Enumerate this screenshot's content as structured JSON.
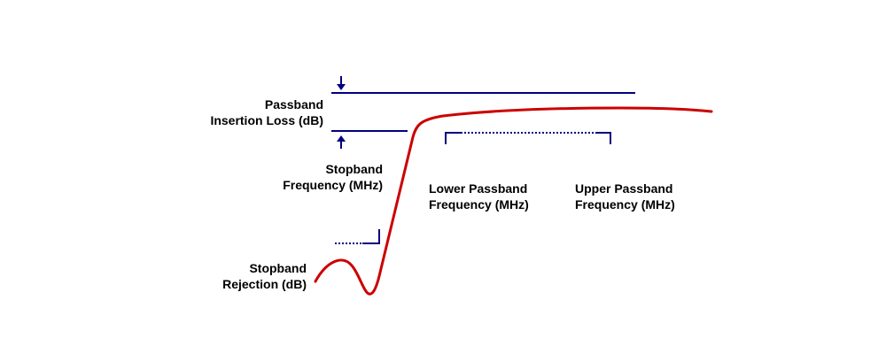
{
  "colors": {
    "response_curve": "#cc0000",
    "markers": "#00007f",
    "text": "#000000",
    "background": "#ffffff"
  },
  "labels": {
    "passband_insertion_loss": "Passband\nInsertion Loss (dB)",
    "stopband_frequency": "Stopband\nFrequency (MHz)",
    "lower_passband_frequency": "Lower Passband\nFrequency (MHz)",
    "upper_passband_frequency": "Upper Passband\nFrequency (MHz)",
    "stopband_rejection": "Stopband\nRejection (dB)"
  },
  "icons": {
    "insertion_loss_top_marker": "arrow-down-icon",
    "insertion_loss_bottom_marker": "arrow-up-icon"
  }
}
